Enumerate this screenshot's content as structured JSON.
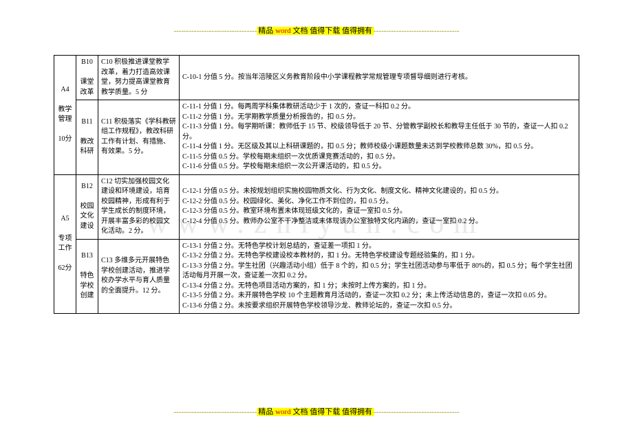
{
  "header": {
    "dash_left": "---------------------------------",
    "text_prefix": "精品 ",
    "word": "word",
    "text_suffix": " 文档  值得下载  值得拥有",
    "dash_right": "----------------------------------"
  },
  "footer": {
    "dash_left": "---------------------------------",
    "text_prefix": "精品 ",
    "word": "word",
    "text_suffix": " 文档  值得下载  值得拥有",
    "dash_right": "----------------------------------"
  },
  "watermark": "www.zhiyun.com",
  "columns": {
    "a_width": 32,
    "b_width": 32,
    "c_width": 118
  },
  "rows": [
    {
      "a": "A4\n\n教学管理\n\n10分",
      "a_rowspan": 2,
      "b": "B10\n\n课堂改革",
      "c": "C10 积极推进课堂教学改革，着力打造高效课堂，努力提高课堂教育教学质量。5 分",
      "d": "C-10-1  分值 5 分。按当年涪陵区义务教育阶段中小学课程教学常规管理专项督导细则进行考核。"
    },
    {
      "b": "B11\n\n教改科研",
      "c": "C11 积极落实《学科教研组工作规程》，教改科研工作有计划、有措施、有效果。5 分。",
      "d": "C-11-1  分值 1 分。每两周学科集体教研活动少于 1 次的，查证一科扣 0.2 分。\nC-11-2  分值 1 分。无学期教学质量分析报告的，扣 0.5 分。\nC-11-3  分值 1 分。每学期听课：教师低于 15 节、校级领导低于 20 节、分管教学副校长和教导主任低于 30 节的，查证一人扣 0.2 分。\nC-11-4  分值 1 分。无区级及其以上科研课题的，扣 0.5 分；教师校级小课题数量未达到学校教师总数 30%，扣 0.5 分。\nC-11-5  分值 0.5 分。学校每期未组织一次优质课竞赛活动的，扣 0.5 分。\nC-11-6  分值 0.5 分。学校每期未组织一次公开课活动的，扣 0.5 分。"
    },
    {
      "a": "A5\n\n专项工作\n\n62分",
      "a_rowspan": 2,
      "b": "B12\n\n校园文化建设",
      "c": "C12 切实加强校园文化建设和环境建设，培育校园精神，形成有利于学生成长的制度环境，开展丰富多彩的校园文化活动。2 分。",
      "d": "C-12-1  分值 0.5 分。未按规划组织实施校园物质文化、行为文化、制度文化、精神文化建设的，扣 0.5 分。\nC-12-2  分值 0.5 分。校园绿化、美化、净化工作不到位的，扣 0.5 分。\nC-12-3  分值 0.5 分。教室环境布置未体现班级文化的，查证一室扣 0.5 分。\nC-12-4  分值 0.5 分。教师办公室不干净整洁或未体现该办公室独特文化内涵的，查证一室扣 0.2 分。"
    },
    {
      "b": "B13\n\n特色学校创建",
      "c": "C13 多维多元开展特色学校创建活动，推进学校办学水平与育人质量的全面提升。12 分。",
      "d": "C-13-1  分值 2 分。无特色学校计划总结的，查证差一项扣 1 分。\nC-13-2  分值 2 分。无特色学校建设校本教材的，扣 1 分。无特色学校建设专题经验集的，扣 1 分。\nC-13-3 分值 2 分。学生社团（兴趣活动小组）低于 8 个的，扣 0.5 分；学生社团活动参与率低于 80%的，扣 0.5 分；每个学生社团活动每月开展一次，查证差一次扣 0.2 分。\nC-13-4 分值 2 分。无特色项目活动方案的，扣 1 分；未按时上传方案的，扣 1 分。\nC-13-5 分值 2 分。未开展特色学校 10 个主题教育月活动的，查证一次扣 0.2 分；未上传活动信息的，查证一次扣 0.05 分。\nC-13-6 分值 2 分。未按要求组织开展特色学校领导沙龙、教师论坛的，查证一次扣 0.5 分。"
    }
  ]
}
